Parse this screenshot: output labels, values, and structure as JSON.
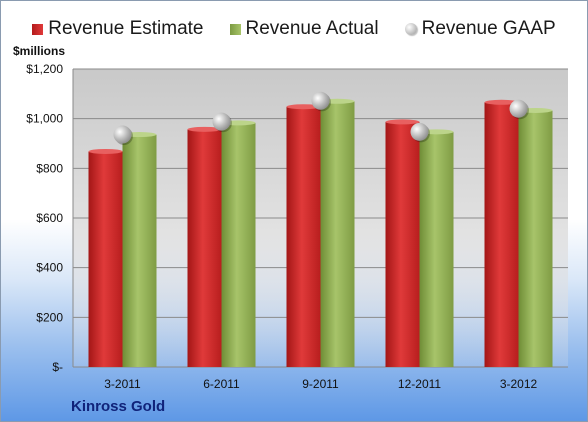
{
  "chart_data": {
    "type": "bar",
    "categories": [
      "3-2011",
      "6-2011",
      "9-2011",
      "12-2011",
      "3-2012"
    ],
    "series": [
      {
        "name": "Revenue Estimate",
        "values": [
          868,
          957,
          1048,
          987,
          1066
        ],
        "color": "#c62828"
      },
      {
        "name": "Revenue Actual",
        "values": [
          936,
          983,
          1070,
          947,
          1033
        ],
        "color": "#93b35a"
      }
    ],
    "markers": {
      "name": "Revenue GAAP",
      "values": [
        936,
        988,
        1072,
        947,
        1040
      ],
      "color": "#c8c8c8"
    },
    "ylabel": "$millions",
    "ylim": [
      0,
      1200
    ],
    "yticks": [
      0,
      200,
      400,
      600,
      800,
      1000,
      1200
    ],
    "ytick_labels": [
      "$-",
      "$200",
      "$400",
      "$600",
      "$800",
      "$1,000",
      "$1,200"
    ],
    "grid": true,
    "legend_position": "top"
  },
  "company": "Kinross Gold"
}
